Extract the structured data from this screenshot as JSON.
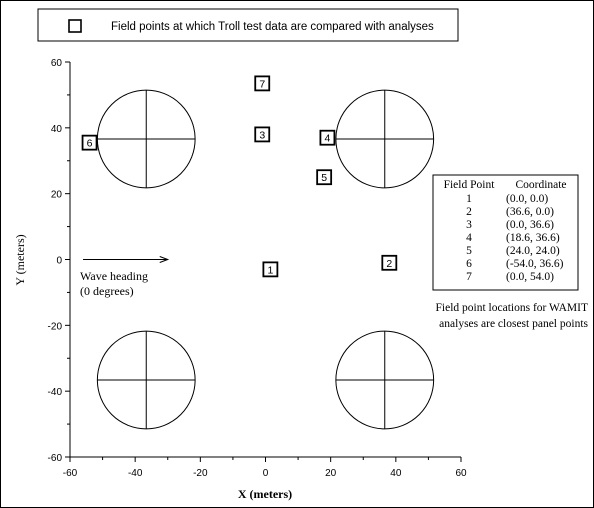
{
  "legend": {
    "text": "Field points at which Troll test data are compared with analyses"
  },
  "axes": {
    "xlabel": "X (meters)",
    "ylabel": "Y (meters)",
    "xlim": [
      -60,
      60
    ],
    "ylim": [
      -60,
      60
    ],
    "x_ticks": [
      "-60",
      "-40",
      "-20",
      "0",
      "20",
      "40",
      "60"
    ],
    "y_ticks": [
      "60",
      "40",
      "20",
      "0",
      "-20",
      "-40",
      "-60"
    ]
  },
  "wave": {
    "line1": "Wave heading",
    "line2": "(0 degrees)",
    "from": [
      -56,
      0
    ],
    "to": [
      -30,
      0
    ]
  },
  "columns": [
    {
      "x": -36.6,
      "y": 36.6,
      "r": 15
    },
    {
      "x": 36.6,
      "y": 36.6,
      "r": 15
    },
    {
      "x": -36.6,
      "y": -36.6,
      "r": 15
    },
    {
      "x": 36.6,
      "y": -36.6,
      "r": 15
    }
  ],
  "markers": [
    {
      "label": "1",
      "x": 1.5,
      "y": -3
    },
    {
      "label": "2",
      "x": 38,
      "y": -1
    },
    {
      "label": "3",
      "x": -1,
      "y": 38
    },
    {
      "label": "4",
      "x": 19,
      "y": 37
    },
    {
      "label": "5",
      "x": 18,
      "y": 25
    },
    {
      "label": "6",
      "x": -54,
      "y": 35.5
    },
    {
      "label": "7",
      "x": -1,
      "y": 53.5
    }
  ],
  "table": {
    "headers": [
      "Field Point",
      "Coordinate"
    ],
    "rows": [
      [
        "1",
        "(0.0, 0.0)"
      ],
      [
        "2",
        "(36.6, 0.0)"
      ],
      [
        "3",
        "(0.0, 36.6)"
      ],
      [
        "4",
        "(18.6, 36.6)"
      ],
      [
        "5",
        "(24.0, 24.0)"
      ],
      [
        "6",
        "(-54.0, 36.6)"
      ],
      [
        "7",
        "(0.0, 54.0)"
      ]
    ]
  },
  "note": {
    "line1": "Field point locations for WAMIT",
    "line2": "analyses are closest panel points"
  }
}
